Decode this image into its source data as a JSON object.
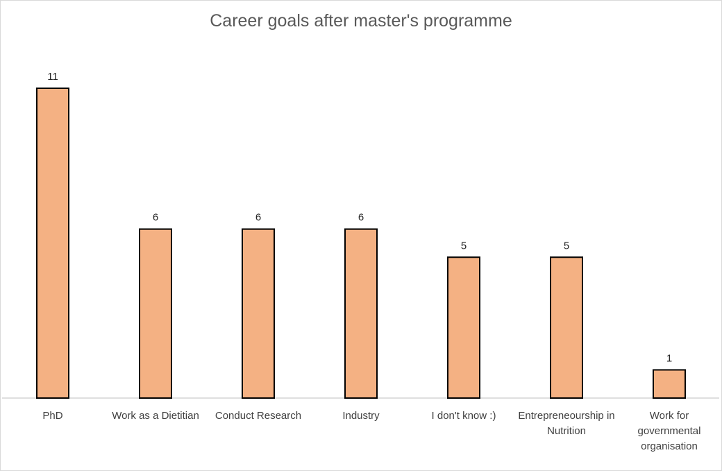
{
  "chart_data": {
    "type": "bar",
    "title": "Career goals after master's programme",
    "categories": [
      "PhD",
      "Work as a Dietitian",
      "Conduct Research",
      "Industry",
      "I don't know :)",
      "Entrepreneourship in Nutrition",
      "Work for governmental organisation"
    ],
    "category_lines": [
      [
        "PhD"
      ],
      [
        "Work as a Dietitian"
      ],
      [
        "Conduct Research"
      ],
      [
        "Industry"
      ],
      [
        "I don't know :)"
      ],
      [
        "Entrepreneourship in",
        "Nutrition"
      ],
      [
        "Work for",
        "governmental",
        "organisation"
      ]
    ],
    "values": [
      11,
      6,
      6,
      6,
      5,
      5,
      1
    ],
    "xlabel": "",
    "ylabel": "",
    "ylim": [
      0,
      11
    ],
    "grid": false,
    "legend": "none",
    "colors": {
      "bar_fill": "#f4b183",
      "bar_stroke": "#000000",
      "axis": "#bfbfbf",
      "title": "#595959"
    }
  }
}
